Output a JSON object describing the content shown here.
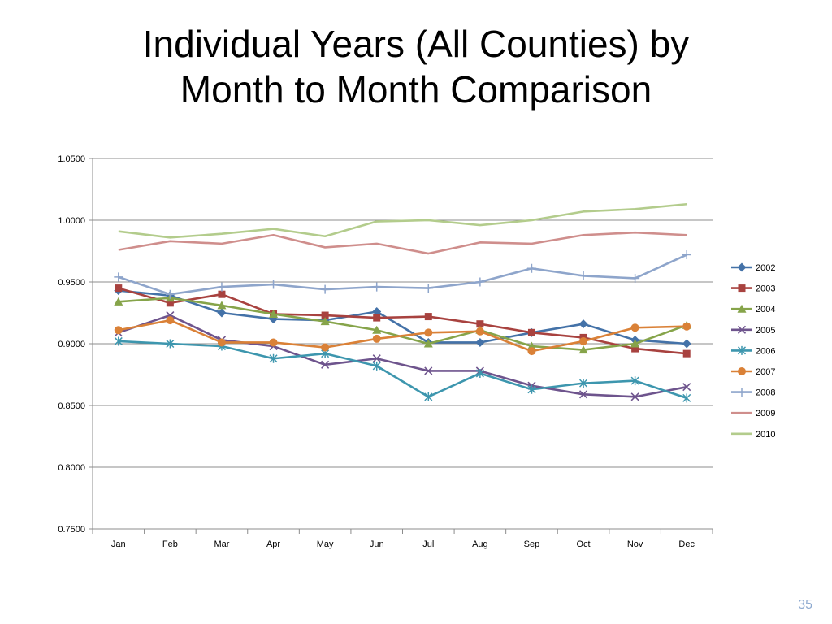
{
  "slide": {
    "title_line1": "Individual Years (All Counties) by",
    "title_line2": "Month to Month Comparison",
    "page_number": "35"
  },
  "chart_data": {
    "type": "line",
    "title": "",
    "xlabel": "",
    "ylabel": "",
    "categories": [
      "Jan",
      "Feb",
      "Mar",
      "Apr",
      "May",
      "Jun",
      "Jul",
      "Aug",
      "Sep",
      "Oct",
      "Nov",
      "Dec"
    ],
    "ylim": [
      0.75,
      1.05
    ],
    "yticks": [
      0.75,
      0.8,
      0.85,
      0.9,
      0.95,
      1.0,
      1.05
    ],
    "ytick_labels": [
      "0.7500",
      "0.8000",
      "0.8500",
      "0.9000",
      "0.9500",
      "1.0000",
      "1.0500"
    ],
    "grid": true,
    "legend_position": "right",
    "series": [
      {
        "name": "2002",
        "color": "#4472a8",
        "marker": "diamond",
        "values": [
          0.943,
          0.939,
          0.925,
          0.92,
          0.919,
          0.926,
          0.901,
          0.901,
          0.909,
          0.916,
          0.903,
          0.9
        ]
      },
      {
        "name": "2003",
        "color": "#a8423f",
        "marker": "square",
        "values": [
          0.945,
          0.933,
          0.94,
          0.924,
          0.923,
          0.921,
          0.922,
          0.916,
          0.909,
          0.905,
          0.896,
          0.892
        ]
      },
      {
        "name": "2004",
        "color": "#86a44a",
        "marker": "triangle",
        "values": [
          0.934,
          0.937,
          0.931,
          0.924,
          0.918,
          0.911,
          0.9,
          0.911,
          0.898,
          0.895,
          0.9,
          0.915
        ]
      },
      {
        "name": "2005",
        "color": "#6e548d",
        "marker": "x",
        "values": [
          0.909,
          0.923,
          0.903,
          0.898,
          0.883,
          0.888,
          0.878,
          0.878,
          0.866,
          0.859,
          0.857,
          0.865
        ]
      },
      {
        "name": "2006",
        "color": "#3d96ae",
        "marker": "asterisk",
        "values": [
          0.902,
          0.9,
          0.898,
          0.888,
          0.892,
          0.882,
          0.857,
          0.876,
          0.863,
          0.868,
          0.87,
          0.856
        ]
      },
      {
        "name": "2007",
        "color": "#da8137",
        "marker": "circle",
        "values": [
          0.911,
          0.919,
          0.901,
          0.901,
          0.897,
          0.904,
          0.909,
          0.91,
          0.894,
          0.902,
          0.913,
          0.914
        ]
      },
      {
        "name": "2008",
        "color": "#8ea5cb",
        "marker": "plus",
        "values": [
          0.954,
          0.94,
          0.946,
          0.948,
          0.944,
          0.946,
          0.945,
          0.95,
          0.961,
          0.955,
          0.953,
          0.972
        ]
      },
      {
        "name": "2009",
        "color": "#cf8e8c",
        "marker": "none",
        "values": [
          0.976,
          0.983,
          0.981,
          0.988,
          0.978,
          0.981,
          0.973,
          0.982,
          0.981,
          0.988,
          0.99,
          0.988
        ]
      },
      {
        "name": "2010",
        "color": "#b3cc8c",
        "marker": "none",
        "values": [
          0.991,
          0.986,
          0.989,
          0.993,
          0.987,
          0.999,
          1.0,
          0.996,
          1.0,
          1.007,
          1.009,
          1.013
        ]
      }
    ]
  }
}
